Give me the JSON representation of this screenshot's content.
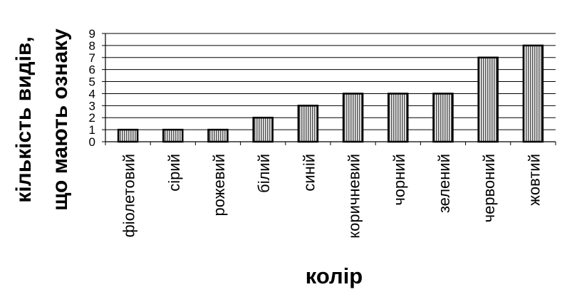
{
  "chart_data": {
    "type": "bar",
    "title": "",
    "xlabel": "колір",
    "ylabel": "кількість видів, що мають ознаку",
    "ylabel_lines": [
      "кількість видів,",
      "що мають ознаку"
    ],
    "categories": [
      "фіолетовий",
      "сірий",
      "рожевий",
      "білий",
      "синій",
      "коричневий",
      "чорний",
      "зелений",
      "червоний",
      "жовтий"
    ],
    "values": [
      1,
      1,
      1,
      2,
      3,
      4,
      4,
      4,
      7,
      8
    ],
    "ylim": [
      0,
      9
    ],
    "yticks": [
      0,
      1,
      2,
      3,
      4,
      5,
      6,
      7,
      8,
      9
    ],
    "grid": true,
    "legend": "none",
    "bar_fill": "vertical-stripes"
  }
}
